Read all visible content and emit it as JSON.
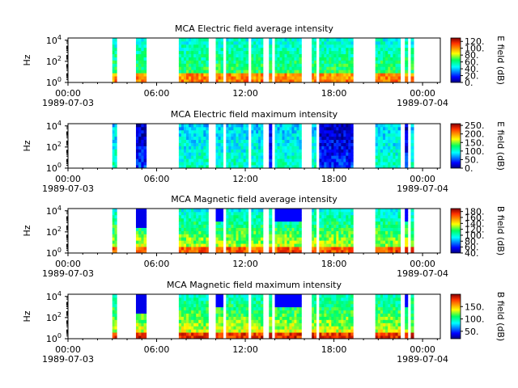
{
  "chart_data": [
    {
      "type": "heatmap",
      "title": "MCA  Electric field average intensity",
      "ylabel": "Hz",
      "y_scale": "log",
      "y_ticks": [
        "10^0",
        "10^2",
        "10^4"
      ],
      "x_ticks": [
        {
          "time": "00:00",
          "date": "1989-07-03"
        },
        {
          "time": "06:00",
          "date": ""
        },
        {
          "time": "12:00",
          "date": ""
        },
        {
          "time": "18:00",
          "date": ""
        },
        {
          "time": "00:00",
          "date": "1989-07-04"
        }
      ],
      "colorbar": {
        "label": "E field (dB)",
        "ticks": [
          "0.",
          "20.",
          "40.",
          "60.",
          "80.",
          "100.",
          "120."
        ],
        "range": [
          0,
          130
        ]
      },
      "data_intervals_hours": [
        [
          3.0,
          3.3
        ],
        [
          4.6,
          5.3
        ],
        [
          7.5,
          9.5
        ],
        [
          10.0,
          10.5
        ],
        [
          10.7,
          12.2
        ],
        [
          12.4,
          13.2
        ],
        [
          13.6,
          13.8
        ],
        [
          14.0,
          15.8
        ],
        [
          16.5,
          16.8
        ],
        [
          17.0,
          19.3
        ],
        [
          20.8,
          22.5
        ],
        [
          22.8,
          23.0
        ],
        [
          23.2,
          23.4
        ]
      ]
    },
    {
      "type": "heatmap",
      "title": "MCA  Electric field maximum intensity",
      "ylabel": "Hz",
      "y_scale": "log",
      "y_ticks": [
        "10^0",
        "10^2",
        "10^4"
      ],
      "x_ticks": [
        {
          "time": "00:00",
          "date": "1989-07-03"
        },
        {
          "time": "06:00",
          "date": ""
        },
        {
          "time": "12:00",
          "date": ""
        },
        {
          "time": "18:00",
          "date": ""
        },
        {
          "time": "00:00",
          "date": "1989-07-04"
        }
      ],
      "colorbar": {
        "label": "E field (dB)",
        "ticks": [
          "0.",
          "50.",
          "100.",
          "150.",
          "200.",
          "250."
        ],
        "range": [
          0,
          260
        ]
      },
      "data_intervals_hours": [
        [
          3.0,
          3.3
        ],
        [
          4.6,
          5.3
        ],
        [
          7.5,
          9.5
        ],
        [
          10.0,
          10.5
        ],
        [
          10.7,
          12.2
        ],
        [
          12.4,
          13.2
        ],
        [
          13.6,
          13.8
        ],
        [
          14.0,
          15.8
        ],
        [
          16.5,
          16.8
        ],
        [
          17.0,
          19.3
        ],
        [
          20.8,
          22.5
        ],
        [
          22.8,
          23.0
        ],
        [
          23.2,
          23.4
        ]
      ]
    },
    {
      "type": "heatmap",
      "title": "MCA  Magnetic field average intensity",
      "ylabel": "Hz",
      "y_scale": "log",
      "y_ticks": [
        "10^0",
        "10^2",
        "10^4"
      ],
      "x_ticks": [
        {
          "time": "00:00",
          "date": "1989-07-03"
        },
        {
          "time": "06:00",
          "date": ""
        },
        {
          "time": "12:00",
          "date": ""
        },
        {
          "time": "18:00",
          "date": ""
        },
        {
          "time": "00:00",
          "date": "1989-07-04"
        }
      ],
      "colorbar": {
        "label": "B field (dB)",
        "ticks": [
          "40.",
          "60.",
          "80.",
          "100.",
          "120.",
          "140.",
          "160.",
          "180."
        ],
        "range": [
          40,
          190
        ]
      },
      "data_intervals_hours": [
        [
          3.0,
          3.3
        ],
        [
          4.6,
          5.3
        ],
        [
          7.5,
          9.5
        ],
        [
          10.0,
          10.5
        ],
        [
          10.7,
          12.2
        ],
        [
          12.4,
          13.2
        ],
        [
          13.6,
          13.8
        ],
        [
          14.0,
          15.8
        ],
        [
          16.5,
          16.8
        ],
        [
          17.0,
          19.3
        ],
        [
          20.8,
          22.5
        ],
        [
          22.8,
          23.0
        ],
        [
          23.2,
          23.4
        ]
      ]
    },
    {
      "type": "heatmap",
      "title": "MCA  Magnetic field maximum intensity",
      "ylabel": "Hz",
      "y_scale": "log",
      "y_ticks": [
        "10^0",
        "10^2",
        "10^4"
      ],
      "x_ticks": [
        {
          "time": "00:00",
          "date": "1989-07-03"
        },
        {
          "time": "06:00",
          "date": ""
        },
        {
          "time": "12:00",
          "date": ""
        },
        {
          "time": "18:00",
          "date": ""
        },
        {
          "time": "00:00",
          "date": "1989-07-04"
        }
      ],
      "colorbar": {
        "label": "B field (dB)",
        "ticks": [
          "50.",
          "100.",
          "150."
        ],
        "range": [
          20,
          200
        ]
      },
      "data_intervals_hours": [
        [
          3.0,
          3.3
        ],
        [
          4.6,
          5.3
        ],
        [
          7.5,
          9.5
        ],
        [
          10.0,
          10.5
        ],
        [
          10.7,
          12.2
        ],
        [
          12.4,
          13.2
        ],
        [
          13.6,
          13.8
        ],
        [
          14.0,
          15.8
        ],
        [
          16.5,
          16.8
        ],
        [
          17.0,
          19.3
        ],
        [
          20.8,
          22.5
        ],
        [
          22.8,
          23.0
        ],
        [
          23.2,
          23.4
        ]
      ]
    }
  ]
}
